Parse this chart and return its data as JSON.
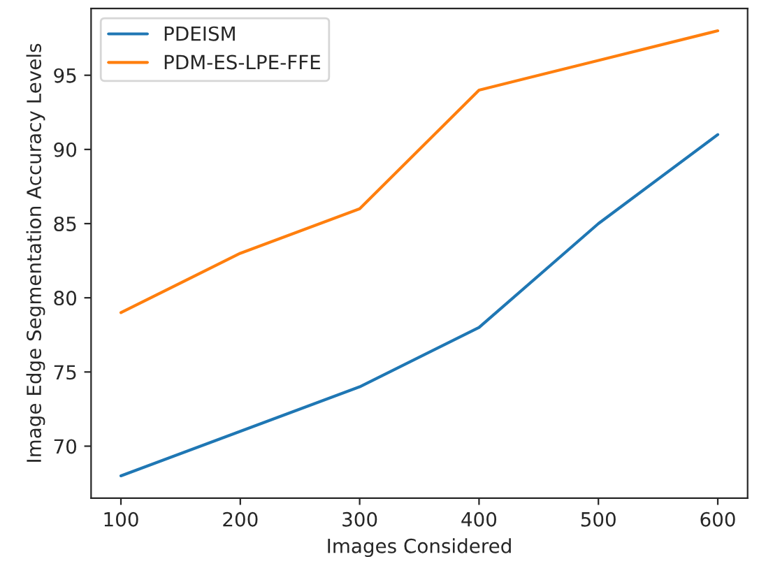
{
  "chart_data": {
    "type": "line",
    "xlabel": "Images Considered",
    "ylabel": "Image Edge Segmentation Accuracy Levels",
    "x": [
      100,
      200,
      300,
      400,
      500,
      600
    ],
    "series": [
      {
        "name": "PDEISM",
        "color": "#1f77b4",
        "values": [
          68,
          71,
          74,
          78,
          85,
          91
        ]
      },
      {
        "name": "PDM-ES-LPE-FFE",
        "color": "#ff7f0e",
        "values": [
          79,
          83,
          86,
          94,
          96,
          98
        ]
      }
    ],
    "xlim": [
      75,
      625
    ],
    "xticks": [
      100,
      200,
      300,
      400,
      500,
      600
    ],
    "ylim": [
      66.5,
      99.5
    ],
    "yticks": [
      70,
      75,
      80,
      85,
      90,
      95
    ],
    "grid": false,
    "legend": "top left",
    "marker": "none",
    "line_style": "solid"
  }
}
